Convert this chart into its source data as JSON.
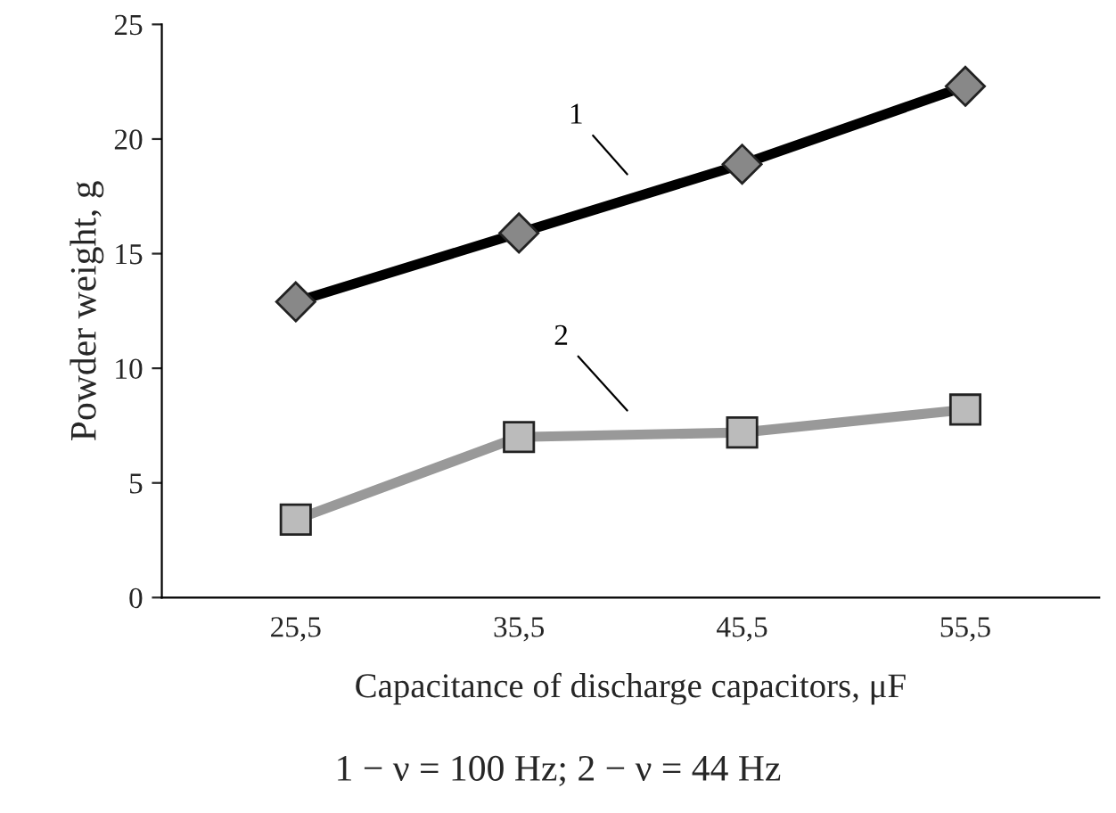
{
  "chart_data": {
    "type": "line",
    "xlabel": "Capacitance of discharge capacitors, μF",
    "ylabel": "Powder weight, g",
    "categories": [
      "25,5",
      "35,5",
      "45,5",
      "55,5"
    ],
    "series": [
      {
        "name": "1",
        "color": "#000000",
        "marker": "diamond",
        "values": [
          12.9,
          15.9,
          18.9,
          22.3
        ]
      },
      {
        "name": "2",
        "color": "#999999",
        "marker": "square",
        "values": [
          3.4,
          7.0,
          7.2,
          8.2
        ]
      }
    ],
    "ylim": [
      0,
      25
    ],
    "yticks": [
      0,
      5,
      10,
      15,
      20,
      25
    ],
    "grid": false,
    "legend": false,
    "line_style": "solid",
    "annotations": [
      "1 − ν = 100 Hz; 2 − ν = 44 Hz"
    ]
  }
}
